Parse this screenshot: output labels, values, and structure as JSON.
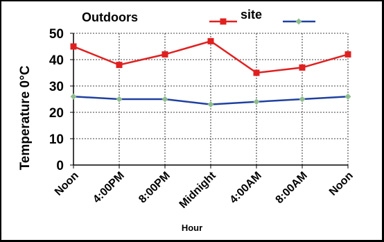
{
  "chart_data": {
    "type": "line",
    "title": "Outdoors",
    "xlabel": "Hour",
    "ylabel": "Temperature 0°C",
    "categories": [
      "Noon",
      "4:00PM",
      "8:00PM",
      "Midnight",
      "4:00AM",
      "8:00AM",
      "Noon"
    ],
    "ylim": [
      0,
      50
    ],
    "yticks": [
      0,
      10,
      20,
      30,
      40,
      50
    ],
    "grid": true,
    "legend_position": "top-right",
    "series": [
      {
        "name": "site",
        "values": [
          45,
          38,
          42,
          47,
          35,
          37,
          42
        ],
        "color": "#e02020",
        "marker": "square"
      },
      {
        "name": "",
        "values": [
          26,
          25,
          25,
          23,
          24,
          25,
          26
        ],
        "color": "#2040a0",
        "marker": "diamond",
        "marker_color": "#8fbc8f"
      }
    ]
  }
}
